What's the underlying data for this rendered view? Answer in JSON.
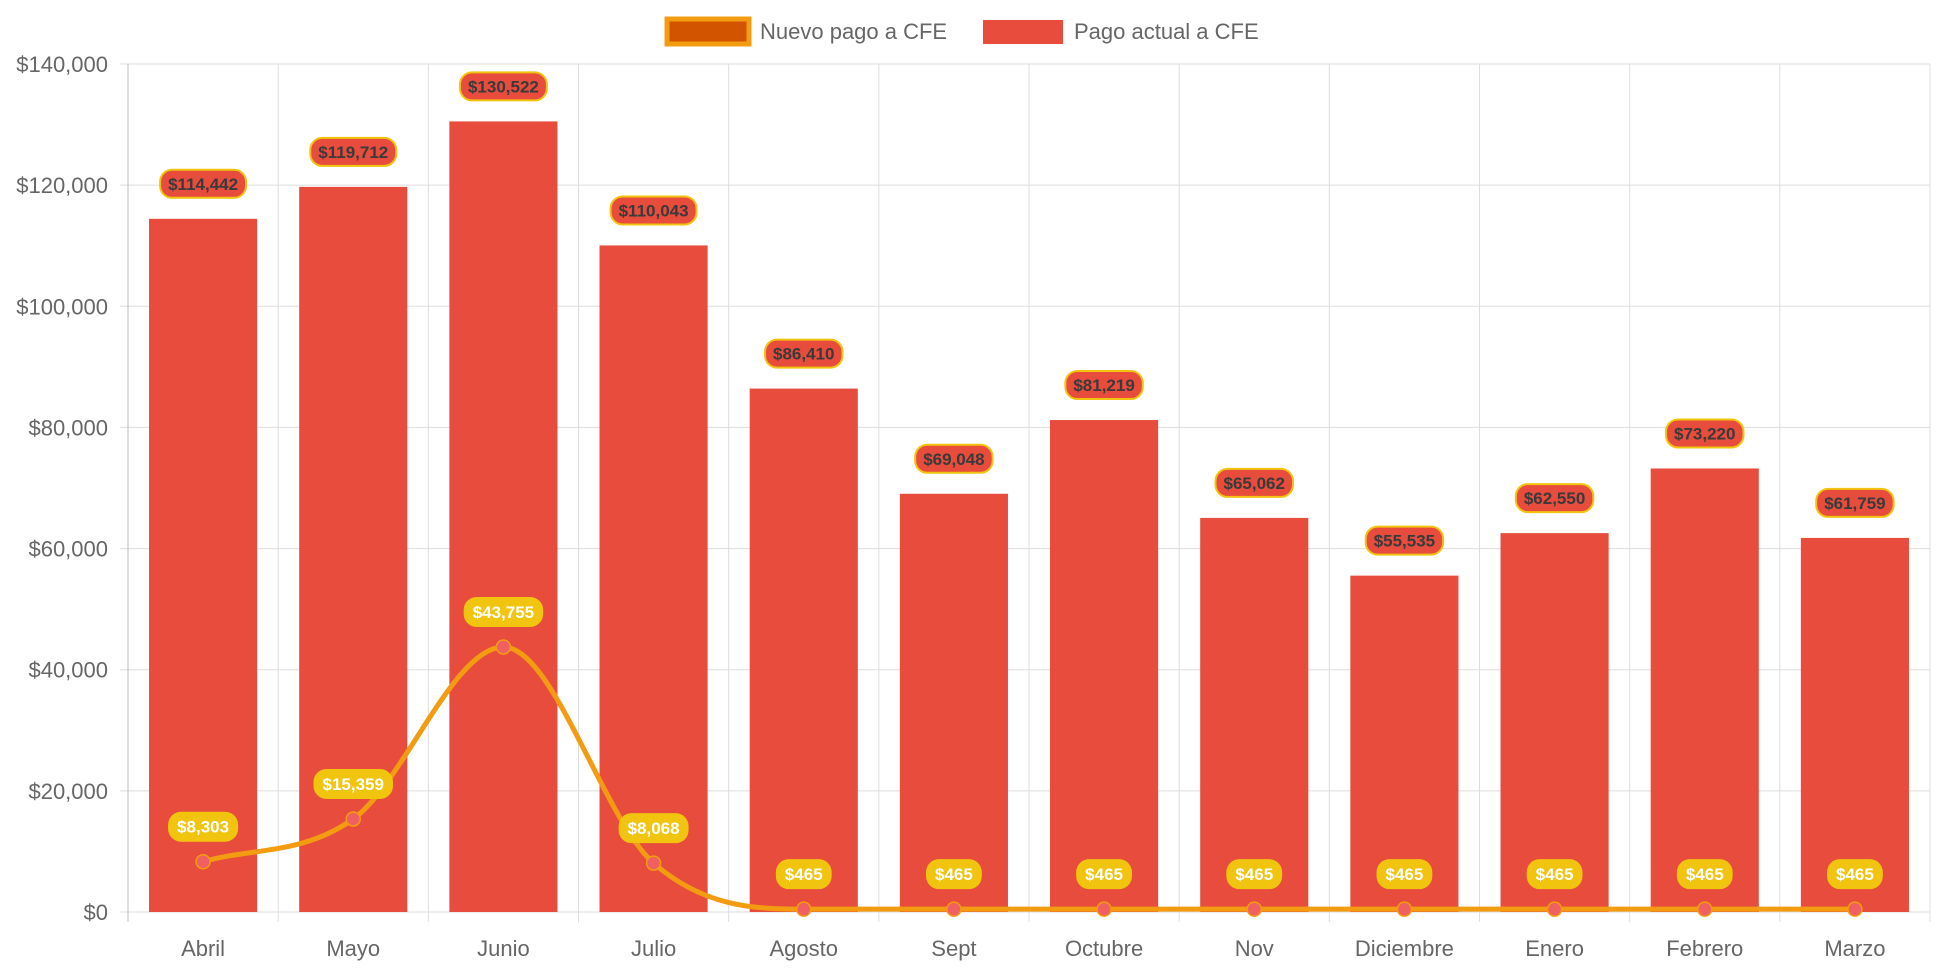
{
  "chart_data": {
    "type": "bar",
    "categories": [
      "Abril",
      "Mayo",
      "Junio",
      "Julio",
      "Agosto",
      "Sept",
      "Octubre",
      "Nov",
      "Diciembre",
      "Enero",
      "Febrero",
      "Marzo"
    ],
    "ylim": [
      0,
      140000
    ],
    "yticks": [
      0,
      20000,
      40000,
      60000,
      80000,
      100000,
      120000,
      140000
    ],
    "ytick_labels": [
      "$0",
      "$20,000",
      "$40,000",
      "$60,000",
      "$80,000",
      "$100,000",
      "$120,000",
      "$140,000"
    ],
    "grid": true,
    "legend_position": "top-center",
    "series": [
      {
        "name": "Pago actual a CFE",
        "type": "bar",
        "color": "#e74c3c",
        "values": [
          114442,
          119712,
          130522,
          110043,
          86410,
          69048,
          81219,
          65062,
          55535,
          62550,
          73220,
          61759
        ],
        "labels": [
          "$114,442",
          "$119,712",
          "$130,522",
          "$110,043",
          "$86,410",
          "$69,048",
          "$81,219",
          "$65,062",
          "$55,535",
          "$62,550",
          "$73,220",
          "$61,759"
        ]
      },
      {
        "name": "Nuevo pago a CFE",
        "type": "line",
        "color": "#f39c12",
        "legend_fill": "#d35400",
        "point_color": "#f06060",
        "label_bg": "#f1c40f",
        "values": [
          8303,
          15359,
          43755,
          8068,
          465,
          465,
          465,
          465,
          465,
          465,
          465,
          465
        ],
        "labels": [
          "$8,303",
          "$15,359",
          "$43,755",
          "$8,068",
          "$465",
          "$465",
          "$465",
          "$465",
          "$465",
          "$465",
          "$465",
          "$465"
        ]
      }
    ]
  }
}
